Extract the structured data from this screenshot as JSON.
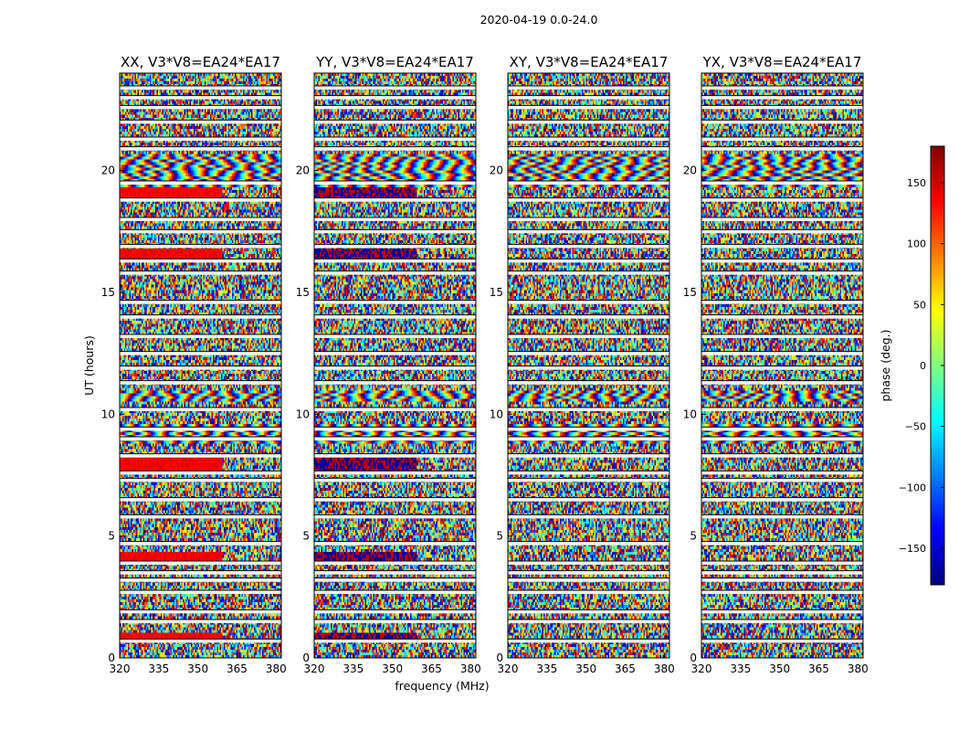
{
  "chart_data": {
    "type": "heatmap",
    "suptitle": "2020-04-19 0.0-24.0",
    "xlabel": "frequency (MHz)",
    "ylabel": "UT (hours)",
    "xlim": [
      320,
      382
    ],
    "ylim": [
      0,
      24
    ],
    "xticks": [
      320,
      335,
      350,
      365,
      380
    ],
    "yticks": [
      0,
      5,
      10,
      15,
      20
    ],
    "colormap": "jet",
    "colorbar": {
      "label": "phase (deg.)",
      "range": [
        -180,
        180
      ],
      "ticks": [
        -150,
        -100,
        -50,
        0,
        50,
        100,
        150
      ],
      "tick_labels": [
        "−150",
        "−100",
        "−50",
        "0",
        "50",
        "100",
        "150"
      ]
    },
    "panels": [
      {
        "title": "XX, V3*V8=EA24*EA17",
        "polarization": "XX"
      },
      {
        "title": "YY, V3*V8=EA24*EA17",
        "polarization": "YY"
      },
      {
        "title": "XY, V3*V8=EA24*EA17",
        "polarization": "XY"
      },
      {
        "title": "YX, V3*V8=EA24*EA17",
        "polarization": "YX"
      }
    ],
    "flagged_gaps_ut_hours": [
      0.7,
      1.5,
      1.9,
      2.7,
      3.2,
      3.5,
      3.9,
      4.7,
      5.8,
      6.5,
      7.3,
      7.6,
      8.3,
      9.0,
      9.4,
      10.2,
      11.3,
      11.9,
      12.5,
      13.2,
      14.0,
      14.6,
      15.8,
      16.3,
      16.9,
      17.5,
      18.0,
      18.8,
      19.5,
      20.9,
      21.3,
      22.0,
      22.6,
      23.0,
      23.4
    ]
  },
  "colors": {
    "background": "#ffffff",
    "gap": "#ffffff",
    "flag_line": "#000000"
  }
}
